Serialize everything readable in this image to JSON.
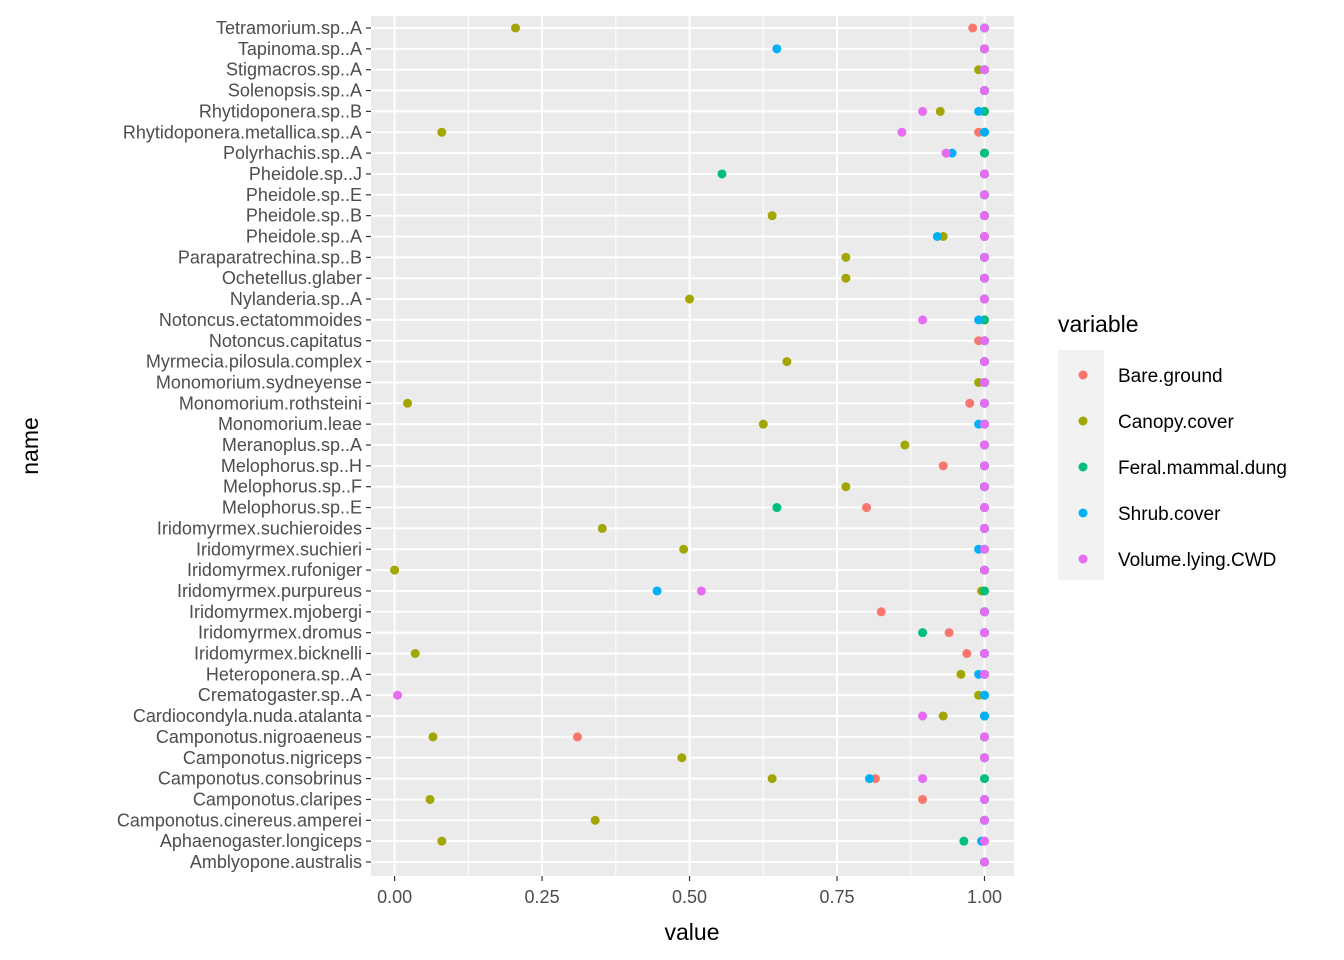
{
  "chart_data": {
    "type": "scatter",
    "xlabel": "value",
    "ylabel": "name",
    "xlim": [
      -0.04,
      1.05
    ],
    "x_ticks": [
      0.0,
      0.25,
      0.5,
      0.75,
      1.0
    ],
    "x_tick_labels": [
      "0.00",
      "0.25",
      "0.50",
      "0.75",
      "1.00"
    ],
    "grid": true,
    "legend_position": "right",
    "legend_title": "variable",
    "categories": [
      "Tetramorium.sp..A",
      "Tapinoma.sp..A",
      "Stigmacros.sp..A",
      "Solenopsis.sp..A",
      "Rhytidoponera.sp..B",
      "Rhytidoponera.metallica.sp..A",
      "Polyrhachis.sp..A",
      "Pheidole.sp..J",
      "Pheidole.sp..E",
      "Pheidole.sp..B",
      "Pheidole.sp..A",
      "Paraparatrechina.sp..B",
      "Ochetellus.glaber",
      "Nylanderia.sp..A",
      "Notoncus.ectatommoides",
      "Notoncus.capitatus",
      "Myrmecia.pilosula.complex",
      "Monomorium.sydneyense",
      "Monomorium.rothsteini",
      "Monomorium.leae",
      "Meranoplus.sp..A",
      "Melophorus.sp..H",
      "Melophorus.sp..F",
      "Melophorus.sp..E",
      "Iridomyrmex.suchieroides",
      "Iridomyrmex.suchieri",
      "Iridomyrmex.rufoniger",
      "Iridomyrmex.purpureus",
      "Iridomyrmex.mjobergi",
      "Iridomyrmex.dromus",
      "Iridomyrmex.bicknelli",
      "Heteroponera.sp..A",
      "Crematogaster.sp..A",
      "Cardiocondyla.nuda.atalanta",
      "Camponotus.nigroaeneus",
      "Camponotus.nigriceps",
      "Camponotus.consobrinus",
      "Camponotus.claripes",
      "Camponotus.cinereus.amperei",
      "Aphaenogaster.longiceps",
      "Amblyopone.australis"
    ],
    "series": [
      {
        "name": "Bare.ground",
        "color": "#F8766D",
        "values": [
          0.98,
          1.0,
          1.0,
          1.0,
          1.0,
          0.99,
          1.0,
          1.0,
          1.0,
          1.0,
          1.0,
          1.0,
          1.0,
          1.0,
          1.0,
          0.99,
          1.0,
          1.0,
          0.975,
          1.0,
          1.0,
          0.93,
          1.0,
          0.8,
          1.0,
          1.0,
          1.0,
          1.0,
          0.825,
          0.94,
          0.97,
          1.0,
          1.0,
          1.0,
          0.31,
          1.0,
          0.815,
          0.895,
          1.0,
          1.0,
          1.0
        ]
      },
      {
        "name": "Canopy.cover",
        "color": "#A3A500",
        "values": [
          0.205,
          1.0,
          0.99,
          1.0,
          0.925,
          0.08,
          0.935,
          1.0,
          1.0,
          0.64,
          0.93,
          0.765,
          0.765,
          0.5,
          1.0,
          1.0,
          0.665,
          0.99,
          0.022,
          0.625,
          0.865,
          1.0,
          0.765,
          1.0,
          0.352,
          0.49,
          0.0,
          0.995,
          1.0,
          1.0,
          0.035,
          0.96,
          0.99,
          0.93,
          0.065,
          0.487,
          0.64,
          0.06,
          0.34,
          0.08,
          1.0
        ]
      },
      {
        "name": "Feral.mammal.dung",
        "color": "#00BF7D",
        "values": [
          1.0,
          1.0,
          1.0,
          1.0,
          1.0,
          1.0,
          1.0,
          0.555,
          1.0,
          1.0,
          1.0,
          1.0,
          1.0,
          1.0,
          1.0,
          1.0,
          1.0,
          1.0,
          1.0,
          1.0,
          1.0,
          1.0,
          1.0,
          0.648,
          1.0,
          1.0,
          1.0,
          1.0,
          1.0,
          0.895,
          1.0,
          1.0,
          1.0,
          1.0,
          1.0,
          1.0,
          1.0,
          1.0,
          1.0,
          0.965,
          1.0
        ]
      },
      {
        "name": "Shrub.cover",
        "color": "#00B0F6",
        "values": [
          1.0,
          0.648,
          1.0,
          1.0,
          0.99,
          1.0,
          0.945,
          1.0,
          1.0,
          1.0,
          0.92,
          1.0,
          1.0,
          1.0,
          0.99,
          1.0,
          1.0,
          1.0,
          1.0,
          0.99,
          1.0,
          1.0,
          1.0,
          1.0,
          1.0,
          0.99,
          1.0,
          0.445,
          1.0,
          1.0,
          1.0,
          0.99,
          1.0,
          1.0,
          1.0,
          1.0,
          0.805,
          1.0,
          1.0,
          0.995,
          1.0
        ]
      },
      {
        "name": "Volume.lying.CWD",
        "color": "#E76BF3",
        "values": [
          1.0,
          1.0,
          1.0,
          1.0,
          0.895,
          0.86,
          0.935,
          1.0,
          1.0,
          1.0,
          1.0,
          1.0,
          1.0,
          1.0,
          0.895,
          1.0,
          1.0,
          1.0,
          1.0,
          1.0,
          1.0,
          1.0,
          1.0,
          1.0,
          1.0,
          1.0,
          1.0,
          0.52,
          1.0,
          1.0,
          1.0,
          1.0,
          0.005,
          0.895,
          1.0,
          1.0,
          0.895,
          1.0,
          1.0,
          1.0,
          1.0
        ]
      }
    ]
  }
}
